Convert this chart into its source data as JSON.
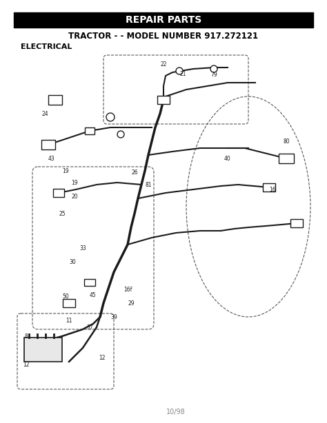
{
  "title_bar_text": "REPAIR PARTS",
  "subtitle": "TRACTOR - - MODEL NUMBER 917.272121",
  "section_label": "ELECTRICAL",
  "footer_text": "10/98",
  "bg_color": "#ffffff",
  "title_bar_color": "#000000",
  "title_text_color": "#ffffff",
  "diagram_line_color": "#1a1a1a",
  "dashed_outline_color": "#555555",
  "figsize": [
    4.74,
    6.14
  ],
  "dpi": 100
}
